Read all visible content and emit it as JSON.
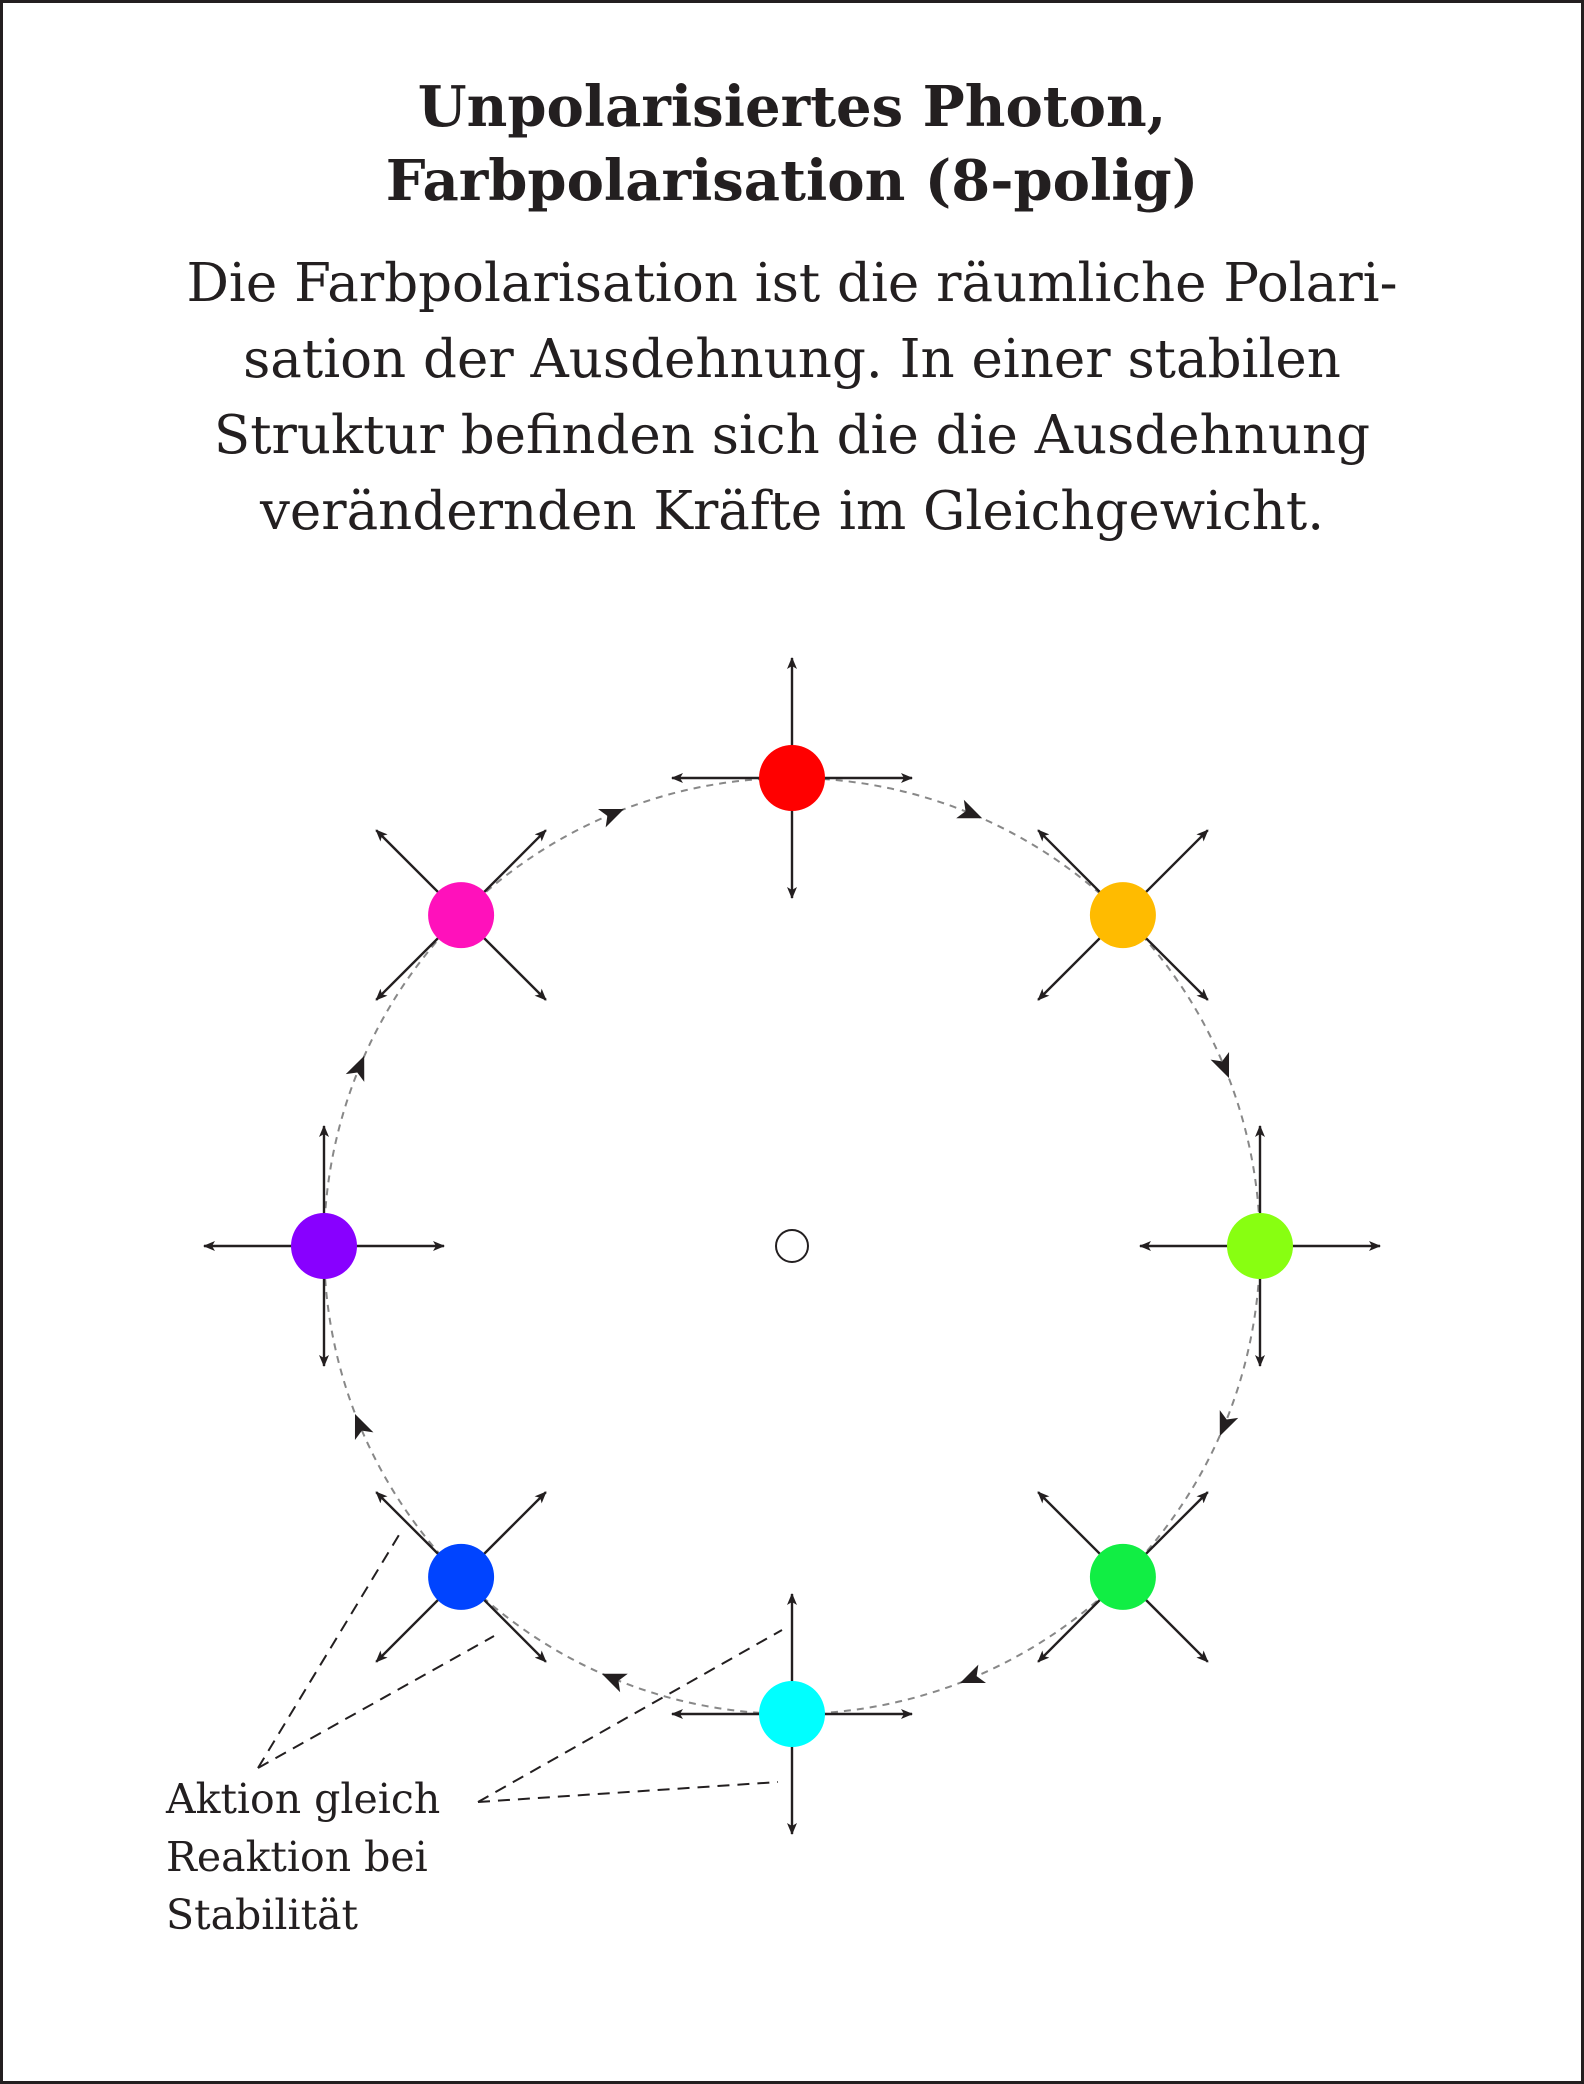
{
  "title": {
    "line1": "Unpolarisiertes Photon,",
    "line2": "Farbpolarisation (8-polig)"
  },
  "description": {
    "line1": "Die Farbpolarisation ist die räumliche Polari-",
    "line2": "sation der Ausdehnung. In einer stabilen",
    "line3": "Struktur befinden sich die die Ausdehnung",
    "line4": "verändernden Kräfte im Gleichgewicht."
  },
  "annotation": {
    "line1": "Aktion gleich",
    "line2": "Reaktion bei",
    "line3": "Stabilität"
  },
  "poles": [
    {
      "angle_deg": 90,
      "color": "#ff0000",
      "arrows": "axis"
    },
    {
      "angle_deg": 45,
      "color": "#ffbb00",
      "arrows": "diagonal"
    },
    {
      "angle_deg": 0,
      "color": "#88ff11",
      "arrows": "axis"
    },
    {
      "angle_deg": -45,
      "color": "#11ee44",
      "arrows": "diagonal"
    },
    {
      "angle_deg": -90,
      "color": "#00ffff",
      "arrows": "axis"
    },
    {
      "angle_deg": -135,
      "color": "#0044ff",
      "arrows": "diagonal"
    },
    {
      "angle_deg": 180,
      "color": "#8800ff",
      "arrows": "axis"
    },
    {
      "angle_deg": 135,
      "color": "#ff11bb",
      "arrows": "diagonal"
    }
  ],
  "colors": {
    "ink": "#231f20",
    "circle": "#888888"
  }
}
